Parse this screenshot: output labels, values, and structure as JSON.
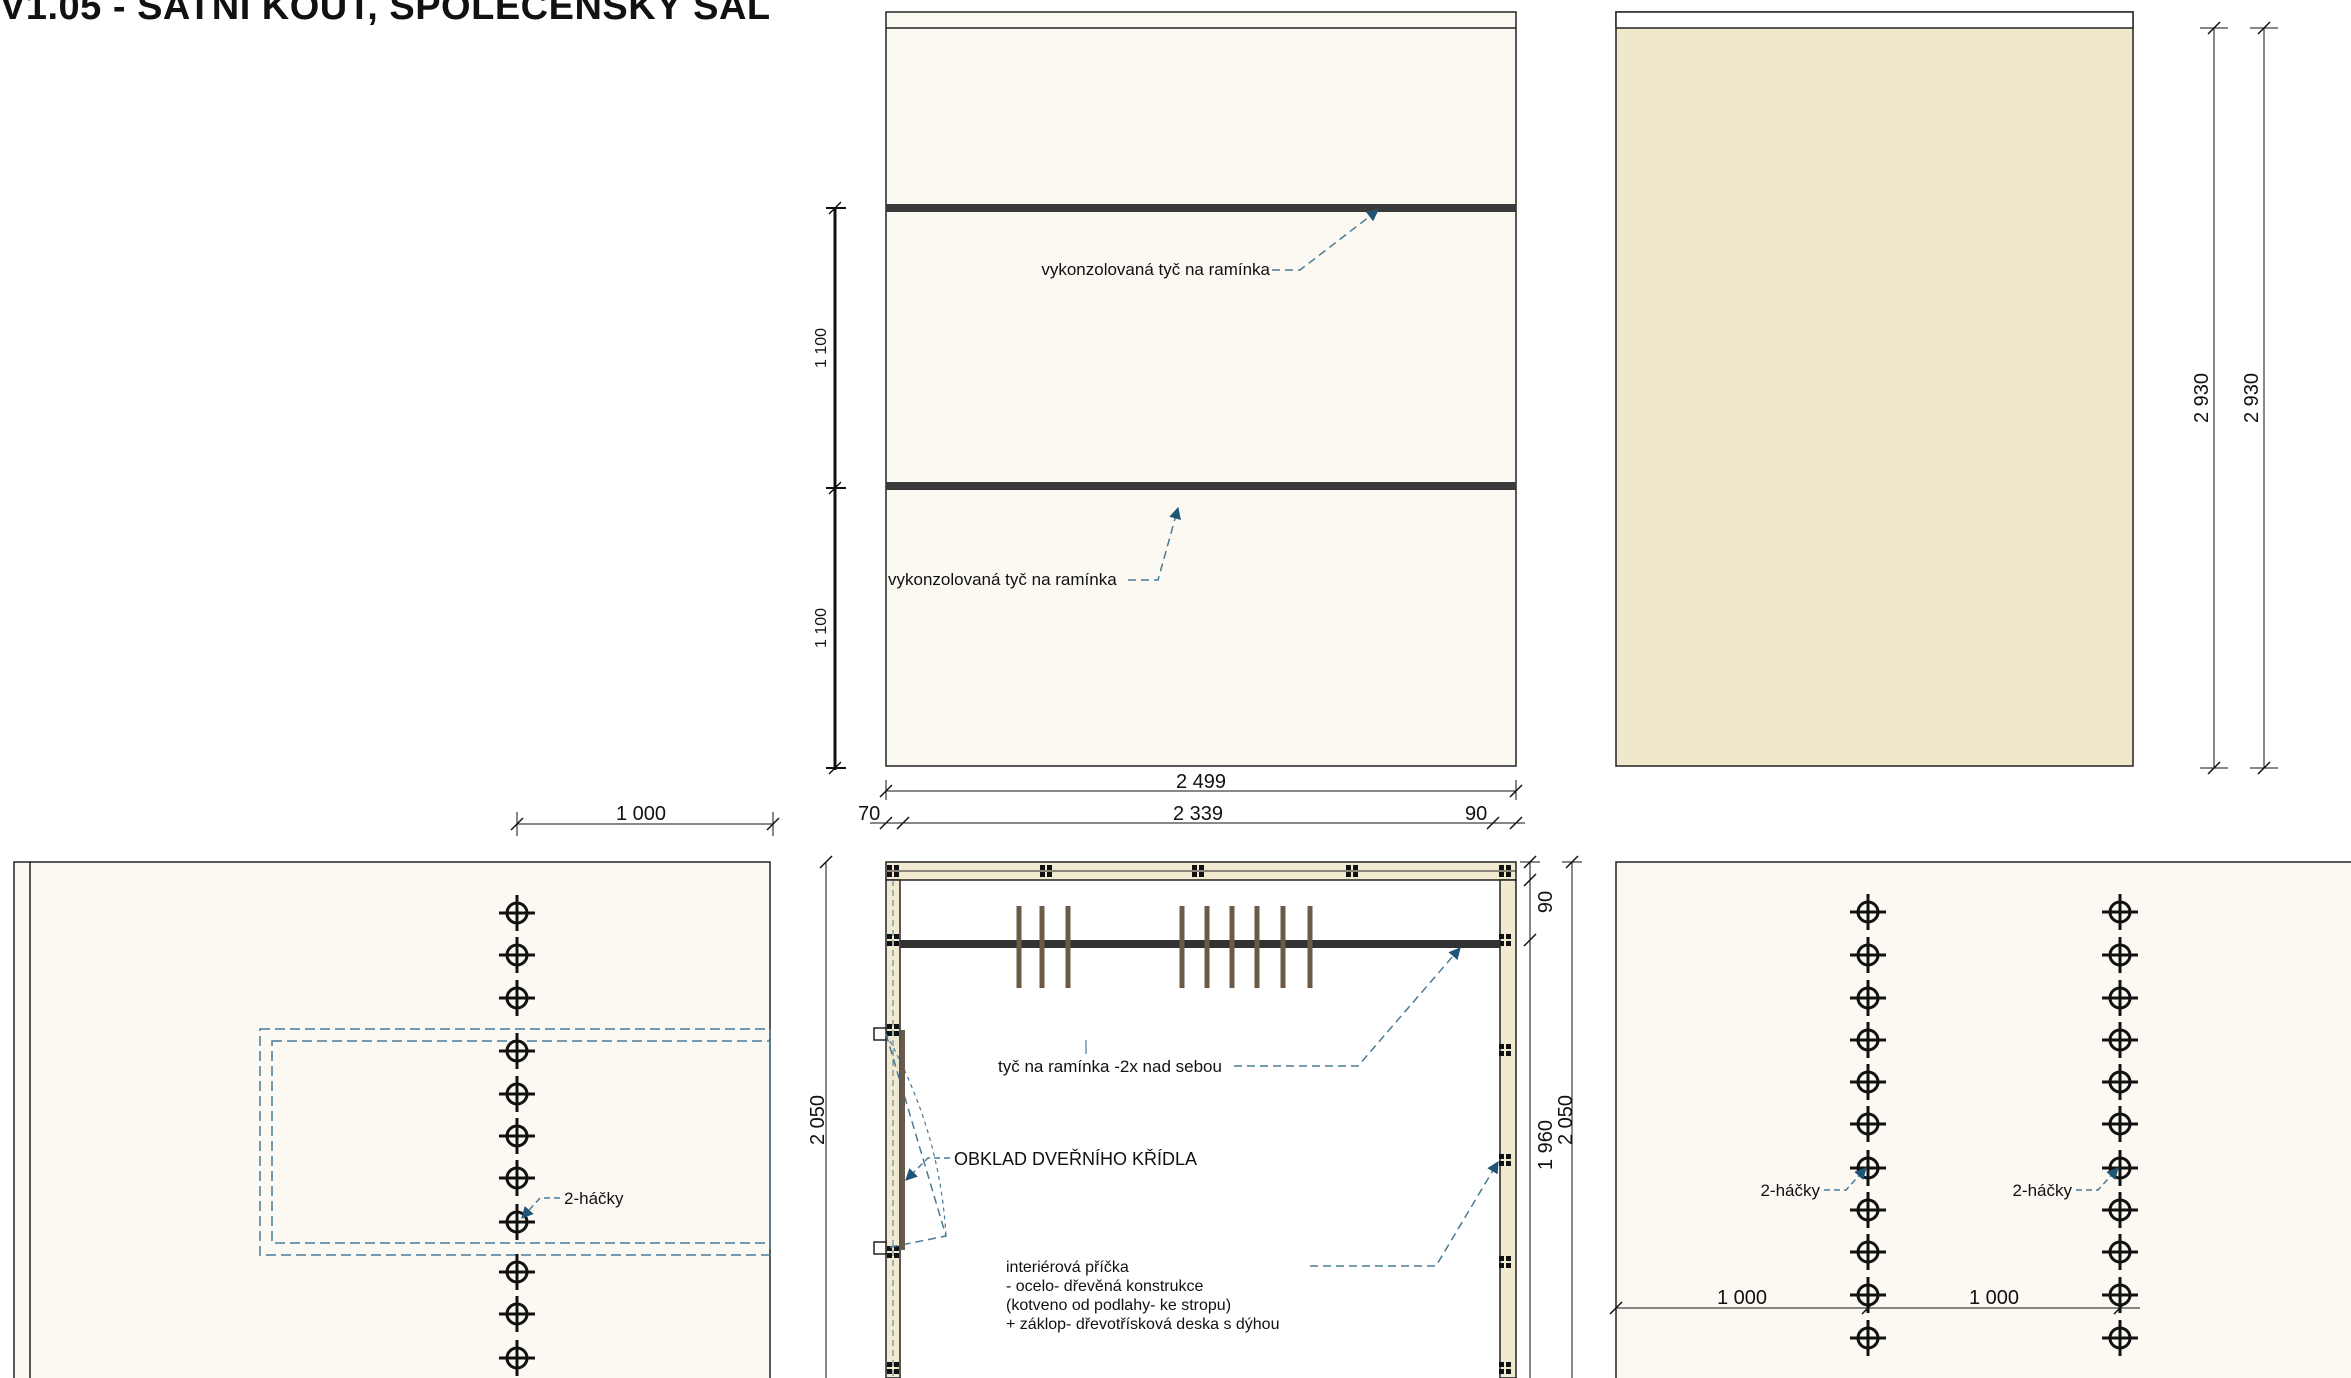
{
  "title": "V1.05 -  ŠATNÍ KOUT, SPOLEČENSKÝ SÁL",
  "colors": {
    "panel_light": "#fbf9f2",
    "panel_veneer": "#efe8cb",
    "line": "#222222",
    "leader": "#4a7a96",
    "arrow": "#1f5576"
  },
  "top_center": {
    "rail_label_upper": "vykonzolovaná tyč na ramínka",
    "rail_label_lower": "vykonzolovaná tyč na ramínka",
    "dim_left_upper": "1 100",
    "dim_left_lower": "1 100",
    "dim_total_width": "2 499",
    "dim_left_offset": "70",
    "dim_inner_width": "2 339",
    "dim_right_offset": "90"
  },
  "top_right": {
    "dim_height_a": "2 930",
    "dim_height_b": "2 930"
  },
  "bottom_left": {
    "dim_width": "1 000",
    "hook_label": "2-háčky"
  },
  "bottom_center": {
    "rail_label": "tyč na ramínka -2x nad sebou",
    "door_label": "OBKLAD DVEŘNÍHO KŘÍDLA",
    "partition_lines": [
      "interiérová příčka",
      "- ocelo- dřevěná konstrukce",
      "(kotveno od podlahy- ke stropu)",
      "+ záklop- dřevotřísková deska s dýhou"
    ],
    "dim_left_height": "2 050",
    "dim_right_top": "90",
    "dim_right_inner": "1 960",
    "dim_right_height": "2 050"
  },
  "bottom_right": {
    "hook_label_left": "2-háčky",
    "hook_label_right": "2-háčky",
    "dim_width_left": "1 000",
    "dim_width_right": "1 000"
  }
}
